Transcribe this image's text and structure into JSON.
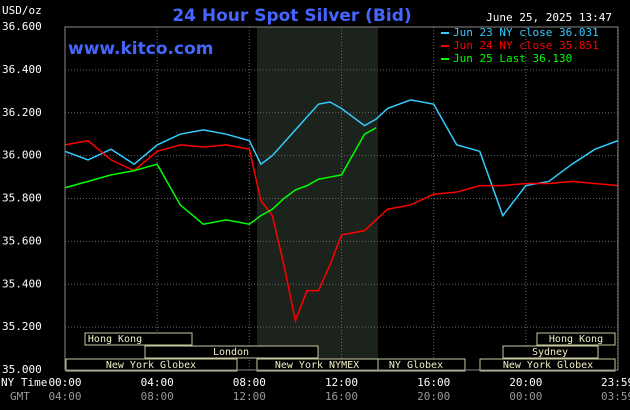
{
  "chart_data": {
    "type": "line",
    "title": "24 Hour Spot Silver (Bid)",
    "y_label": "USD/oz",
    "timestamp": "June 25, 2025 13:47",
    "source": "www.kitco.com",
    "x_row_labels": [
      "NY Time",
      "GMT"
    ],
    "x": [
      0,
      1,
      2,
      3,
      4,
      5,
      6,
      7,
      8,
      8.5,
      9,
      9.5,
      10,
      10.5,
      11,
      11.5,
      12,
      13,
      13.5,
      14,
      15,
      16,
      17,
      18,
      19,
      20,
      21,
      22,
      23,
      24
    ],
    "series": [
      {
        "name": "Jun 23 NY close 36.031",
        "color": "#33ccff",
        "values": [
          36.02,
          35.98,
          36.03,
          35.96,
          36.05,
          36.1,
          36.12,
          36.1,
          36.07,
          35.96,
          36.0,
          36.06,
          36.12,
          36.18,
          36.24,
          36.25,
          36.22,
          36.14,
          36.17,
          36.22,
          36.26,
          36.24,
          36.05,
          36.02,
          35.72,
          35.86,
          35.88,
          35.96,
          36.03,
          36.07
        ]
      },
      {
        "name": "Jun 24 NY close 35.851",
        "color": "#ff0000",
        "values": [
          36.05,
          36.07,
          35.98,
          35.93,
          36.02,
          36.05,
          36.04,
          36.05,
          36.03,
          35.79,
          35.72,
          35.49,
          35.23,
          35.37,
          35.37,
          35.49,
          35.63,
          35.65,
          35.7,
          35.75,
          35.77,
          35.82,
          35.83,
          35.86,
          35.86,
          35.87,
          35.87,
          35.88,
          35.87,
          35.86
        ]
      },
      {
        "name": "Jun 25 Last 36.130",
        "color": "#00ff00",
        "values": [
          35.85,
          35.88,
          35.91,
          35.93,
          35.96,
          35.77,
          35.68,
          35.7,
          35.68,
          35.72,
          35.75,
          35.8,
          35.84,
          35.86,
          35.89,
          35.9,
          35.91,
          36.1,
          36.13,
          null,
          null,
          null,
          null,
          null,
          null,
          null,
          null,
          null,
          null,
          null
        ]
      }
    ],
    "xlim": [
      0,
      24
    ],
    "xticks": [
      {
        "value": 0,
        "label": "00:00"
      },
      {
        "value": 4,
        "label": "04:00"
      },
      {
        "value": 8,
        "label": "08:00"
      },
      {
        "value": 12,
        "label": "12:00"
      },
      {
        "value": 16,
        "label": "16:00"
      },
      {
        "value": 20,
        "label": "20:00"
      },
      {
        "value": 23.983,
        "label": "23:59"
      }
    ],
    "gmt_labels": [
      "04:00",
      "08:00",
      "12:00",
      "16:00",
      "20:00",
      "00:00",
      "03:59"
    ],
    "ylim": [
      35.0,
      36.6
    ],
    "yticks": [
      {
        "value": 35.0,
        "label": "35.000"
      },
      {
        "value": 35.2,
        "label": "35.200"
      },
      {
        "value": 35.4,
        "label": "35.400"
      },
      {
        "value": 35.6,
        "label": "35.600"
      },
      {
        "value": 35.8,
        "label": "35.800"
      },
      {
        "value": 36.0,
        "label": "36.000"
      },
      {
        "value": 36.2,
        "label": "36.200"
      },
      {
        "value": 36.4,
        "label": "36.400"
      },
      {
        "value": 36.6,
        "label": "36.600"
      }
    ],
    "grid": true,
    "sessions": [
      "Hong Kong",
      "London",
      "New York Globex",
      "New York NYMEX",
      "NY Globex",
      "Hong Kong",
      "Sydney",
      "New York Globex"
    ]
  }
}
